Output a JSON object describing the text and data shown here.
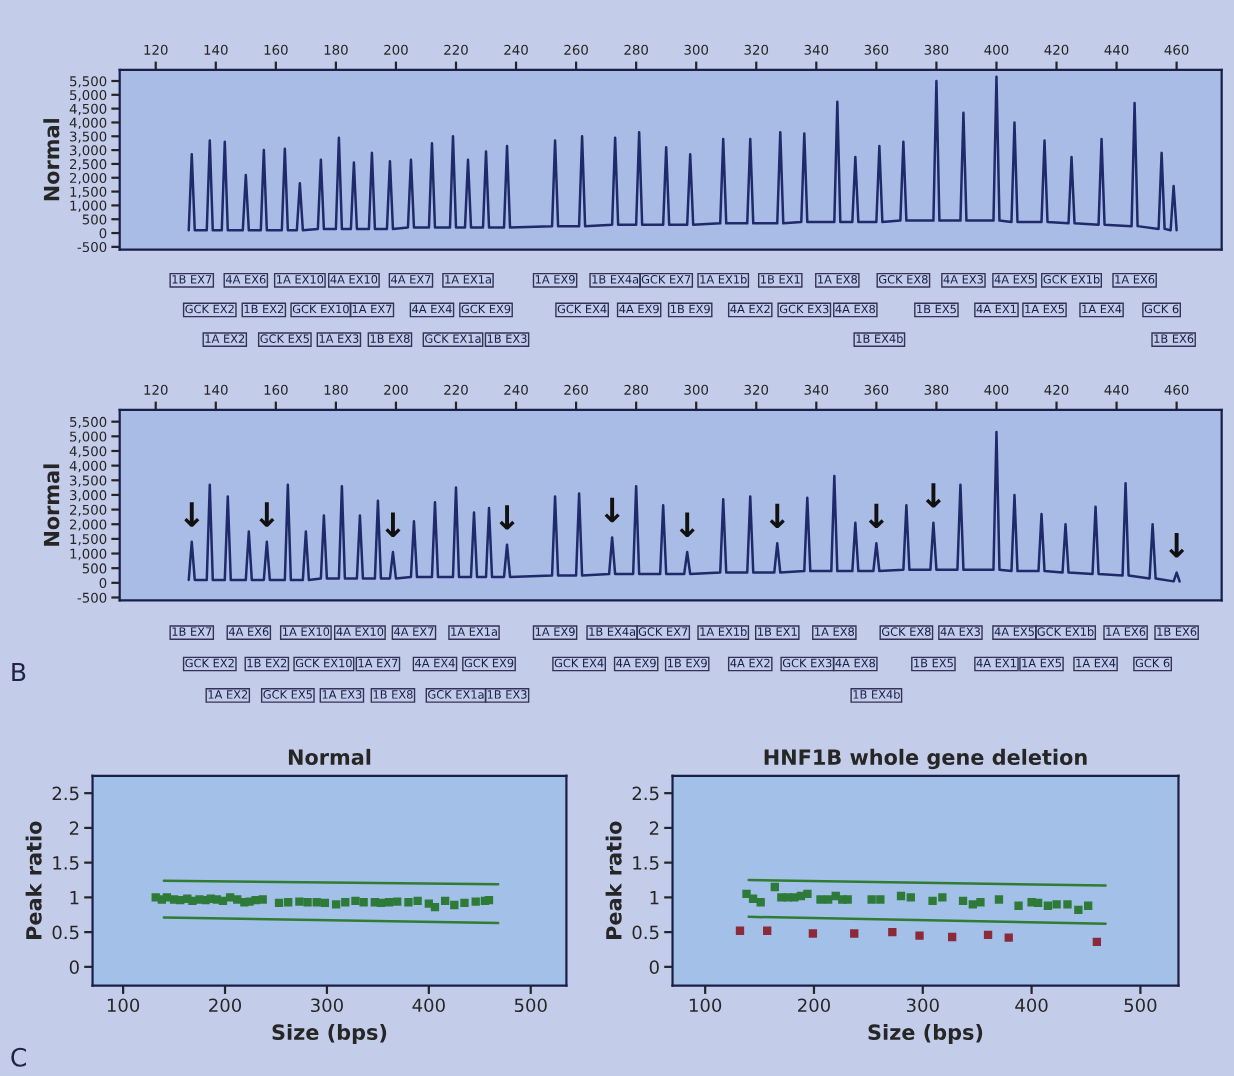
{
  "chart_data": [
    {
      "type": "line",
      "ylabel": "Normal",
      "line_style": "solid",
      "xlim": [
        108,
        475
      ],
      "xticks": [
        120,
        140,
        160,
        180,
        200,
        220,
        240,
        260,
        280,
        300,
        320,
        340,
        360,
        380,
        400,
        420,
        440,
        460
      ],
      "ylim": [
        -600,
        5900
      ],
      "yticks": [
        {
          "value": -500,
          "label": "-500"
        },
        0,
        500,
        {
          "value": 1000,
          "label": "1,000"
        },
        {
          "value": 1500,
          "label": "1,500"
        },
        {
          "value": 2000,
          "label": "2,000"
        },
        {
          "value": 2500,
          "label": "2,500"
        },
        {
          "value": 3000,
          "label": "3,000"
        },
        {
          "value": 3500,
          "label": "3,500"
        },
        {
          "value": 4000,
          "label": "4,000"
        },
        {
          "value": 4500,
          "label": "4,500"
        },
        {
          "value": 5000,
          "label": "5,000"
        },
        {
          "value": 5500,
          "label": "5,500"
        }
      ],
      "series": [
        {
          "color": "#1f2a6b",
          "x": [
            131,
            132,
            133,
            137,
            138,
            139,
            142,
            143,
            144,
            149,
            150,
            151,
            155,
            156,
            157,
            162,
            163,
            164,
            167,
            168,
            169,
            174,
            175,
            176,
            180,
            181,
            182,
            185,
            186,
            187,
            191,
            192,
            193,
            197,
            198,
            199,
            204,
            205,
            206,
            211,
            212,
            213,
            218,
            219,
            220,
            223,
            224,
            225,
            229,
            230,
            231,
            236,
            237,
            238,
            252,
            253,
            254,
            261,
            262,
            263,
            272,
            273,
            274,
            280,
            281,
            282,
            289,
            290,
            291,
            297,
            298,
            299,
            308,
            309,
            310,
            317,
            318,
            319,
            327,
            328,
            329,
            335,
            336,
            337,
            346,
            347,
            348,
            352,
            353,
            354,
            360,
            361,
            362,
            368,
            369,
            370,
            379,
            380,
            381,
            388,
            389,
            390,
            399,
            400,
            401,
            405,
            406,
            407,
            415,
            416,
            417,
            424,
            425,
            426,
            434,
            435,
            436,
            445,
            446,
            447,
            454,
            455,
            456,
            458,
            459,
            460
          ],
          "values": [
            100,
            2850,
            100,
            100,
            3350,
            100,
            100,
            3300,
            100,
            100,
            2100,
            100,
            100,
            3000,
            100,
            100,
            3050,
            100,
            100,
            1800,
            100,
            150,
            2650,
            150,
            150,
            3450,
            150,
            150,
            2550,
            150,
            150,
            2900,
            150,
            150,
            2600,
            150,
            200,
            2650,
            200,
            200,
            3250,
            200,
            200,
            3500,
            200,
            200,
            2650,
            200,
            200,
            2950,
            200,
            200,
            3150,
            200,
            250,
            3350,
            250,
            250,
            3500,
            250,
            300,
            3450,
            300,
            300,
            3650,
            300,
            300,
            3100,
            300,
            300,
            2850,
            300,
            350,
            3400,
            350,
            350,
            3400,
            350,
            350,
            3650,
            350,
            400,
            3600,
            400,
            400,
            4750,
            400,
            400,
            2750,
            400,
            400,
            3150,
            400,
            450,
            3300,
            450,
            450,
            5500,
            450,
            450,
            4350,
            450,
            450,
            5650,
            450,
            400,
            4000,
            400,
            400,
            3350,
            400,
            350,
            2750,
            350,
            300,
            3400,
            300,
            250,
            4700,
            250,
            150,
            2900,
            150,
            100,
            1700,
            100
          ]
        }
      ],
      "annotations": [
        "1B EX7",
        "GCK EX2",
        "1A EX2",
        "4A EX6",
        "1B EX2",
        "GCK EX5",
        "1A EX10",
        "GCK EX10",
        "1A EX3",
        "4A EX10",
        "1A EX7",
        "1B EX8",
        "4A EX7",
        "4A EX4",
        "GCK EX1a",
        "1A EX1a",
        "GCK EX9",
        "1B EX3",
        "1A EX9",
        "GCK EX4",
        "1B EX4a",
        "4A EX9",
        "GCK EX7",
        "1B EX9",
        "1A EX1b",
        "4A EX2",
        "1B EX1",
        "GCK EX3",
        "1A EX8",
        "4A EX8",
        "1B EX4b",
        "GCK EX8",
        "1B EX5",
        "4A EX3",
        "4A EX1",
        "4A EX5",
        "1A EX5",
        "GCK EX1b",
        "1A EX4",
        "1A EX6",
        "GCK 6",
        "1B EX6"
      ]
    },
    {
      "type": "line",
      "ylabel": "Normal",
      "line_style": "solid",
      "xlim": [
        108,
        475
      ],
      "xticks": [
        120,
        140,
        160,
        180,
        200,
        220,
        240,
        260,
        280,
        300,
        320,
        340,
        360,
        380,
        400,
        420,
        440,
        460
      ],
      "ylim": [
        -600,
        5900
      ],
      "yticks": [
        {
          "value": -500,
          "label": "-500"
        },
        0,
        500,
        {
          "value": 1000,
          "label": "1,000"
        },
        {
          "value": 1500,
          "label": "1,500"
        },
        {
          "value": 2000,
          "label": "2,000"
        },
        {
          "value": 2500,
          "label": "2,500"
        },
        {
          "value": 3000,
          "label": "3,000"
        },
        {
          "value": 3500,
          "label": "3,500"
        },
        {
          "value": 4000,
          "label": "4,000"
        },
        {
          "value": 4500,
          "label": "4,500"
        },
        {
          "value": 5000,
          "label": "5,000"
        },
        {
          "value": 5500,
          "label": "5,500"
        }
      ],
      "series": [
        {
          "color": "#1f2a6b",
          "x": [
            131,
            132,
            133,
            137,
            138,
            139,
            143,
            144,
            145,
            150,
            151,
            152,
            156,
            157,
            158,
            163,
            164,
            165,
            169,
            170,
            171,
            175,
            176,
            177,
            181,
            182,
            183,
            187,
            188,
            189,
            193,
            194,
            195,
            198,
            199,
            200,
            205,
            206,
            207,
            212,
            213,
            214,
            219,
            220,
            221,
            225,
            226,
            227,
            230,
            231,
            232,
            236,
            237,
            238,
            252,
            253,
            254,
            260,
            261,
            262,
            271,
            272,
            273,
            279,
            280,
            281,
            288,
            289,
            290,
            296,
            297,
            298,
            308,
            309,
            310,
            317,
            318,
            319,
            326,
            327,
            328,
            336,
            337,
            338,
            345,
            346,
            347,
            352,
            353,
            354,
            359,
            360,
            361,
            369,
            370,
            371,
            378,
            379,
            380,
            387,
            388,
            389,
            399,
            400,
            401,
            405,
            406,
            407,
            414,
            415,
            416,
            422,
            423,
            424,
            432,
            433,
            434,
            442,
            443,
            444,
            451,
            452,
            453,
            459,
            460,
            461
          ],
          "values": [
            100,
            1400,
            100,
            100,
            3350,
            100,
            100,
            2950,
            100,
            100,
            1750,
            100,
            100,
            1400,
            100,
            100,
            3350,
            100,
            100,
            1750,
            100,
            150,
            2300,
            150,
            150,
            3300,
            150,
            150,
            2300,
            150,
            150,
            2800,
            150,
            150,
            1050,
            150,
            200,
            2100,
            200,
            200,
            2750,
            200,
            200,
            3250,
            200,
            200,
            2400,
            200,
            200,
            2550,
            200,
            200,
            1300,
            200,
            250,
            2950,
            250,
            250,
            3050,
            250,
            300,
            1550,
            300,
            300,
            3300,
            300,
            300,
            2650,
            300,
            300,
            1050,
            300,
            350,
            2850,
            350,
            350,
            2950,
            350,
            350,
            1350,
            350,
            400,
            2900,
            400,
            400,
            3650,
            400,
            400,
            2050,
            400,
            400,
            1350,
            400,
            450,
            2650,
            450,
            450,
            2050,
            450,
            450,
            3350,
            450,
            450,
            5150,
            450,
            400,
            3000,
            400,
            400,
            2350,
            400,
            350,
            2000,
            350,
            300,
            2600,
            300,
            250,
            3400,
            250,
            150,
            2000,
            150,
            50,
            350,
            50
          ]
        }
      ],
      "annotations": [
        {
          "text": "↓",
          "x": 132,
          "y": 1400
        },
        {
          "text": "↓",
          "x": 157,
          "y": 1400
        },
        {
          "text": "↓",
          "x": 199,
          "y": 1050
        },
        {
          "text": "↓",
          "x": 237,
          "y": 1300
        },
        {
          "text": "↓",
          "x": 272,
          "y": 1550
        },
        {
          "text": "↓",
          "x": 297,
          "y": 1050
        },
        {
          "text": "↓",
          "x": 327,
          "y": 1350
        },
        {
          "text": "↓",
          "x": 360,
          "y": 1350
        },
        {
          "text": "↓",
          "x": 379,
          "y": 2050
        },
        {
          "text": "↓",
          "x": 460,
          "y": 350
        },
        "1B EX7",
        "GCK EX2",
        "1A EX2",
        "4A EX6",
        "1B EX2",
        "GCK EX5",
        "1A EX10",
        "GCK EX10",
        "1A EX3",
        "4A EX10",
        "1A EX7",
        "1B EX8",
        "4A EX7",
        "4A EX4",
        "GCK EX1a",
        "1A EX1a",
        "GCK EX9",
        "1B EX3",
        "1A EX9",
        "GCK EX4",
        "1B EX4a",
        "4A EX9",
        "GCK EX7",
        "1B EX9",
        "1A EX1b",
        "4A EX2",
        "1B EX1",
        "GCK EX3",
        "1A EX8",
        "4A EX8",
        "1B EX4b",
        "GCK EX8",
        "1B EX5",
        "4A EX3",
        "4A EX1",
        "4A EX5",
        "1A EX5",
        "GCK EX1b",
        "1A EX4",
        "1A EX6",
        "GCK 6",
        "1B EX6",
        "B"
      ]
    },
    {
      "type": "scatter",
      "title": "Normal",
      "xlabel": "Size (bps)",
      "ylabel": "Peak ratio",
      "marker": "square",
      "line_style": "solid",
      "xlim": [
        70,
        535
      ],
      "xticks": [
        100,
        200,
        300,
        400,
        500
      ],
      "ylim": [
        -0.27,
        2.75
      ],
      "yticks": [
        0,
        0.5,
        1,
        1.5,
        2,
        2.5
      ],
      "series": [
        {
          "type": "line",
          "marker": "none",
          "color": "#2f7d32",
          "x": [
            140,
            468
          ],
          "values": [
            1.24,
            1.19
          ]
        },
        {
          "type": "line",
          "marker": "none",
          "color": "#2f7d32",
          "x": [
            140,
            468
          ],
          "values": [
            0.71,
            0.63
          ]
        },
        {
          "color": "#2e7a38",
          "x": [
            132,
            138,
            143,
            150,
            156,
            163,
            168,
            175,
            181,
            186,
            192,
            198,
            205,
            212,
            219,
            224,
            230,
            237,
            253,
            262,
            273,
            281,
            290,
            298,
            309,
            318,
            328,
            336,
            347,
            353,
            361,
            369,
            380,
            389,
            400,
            406,
            416,
            425,
            435,
            446,
            455,
            459
          ],
          "values": [
            1.0,
            0.97,
            1.0,
            0.97,
            0.96,
            0.98,
            0.95,
            0.97,
            0.96,
            0.98,
            0.97,
            0.95,
            1.0,
            0.97,
            0.93,
            0.94,
            0.96,
            0.97,
            0.92,
            0.93,
            0.94,
            0.93,
            0.93,
            0.92,
            0.9,
            0.93,
            0.95,
            0.93,
            0.93,
            0.92,
            0.93,
            0.94,
            0.93,
            0.95,
            0.91,
            0.86,
            0.95,
            0.89,
            0.92,
            0.94,
            0.95,
            0.96
          ]
        }
      ],
      "annotations": [
        "C"
      ]
    },
    {
      "type": "scatter",
      "title": "HNF1B whole gene deletion",
      "xlabel": "Size (bps)",
      "ylabel": "Peak ratio",
      "marker": "square",
      "line_style": "solid",
      "xlim": [
        70,
        535
      ],
      "xticks": [
        100,
        200,
        300,
        400,
        500
      ],
      "ylim": [
        -0.27,
        2.75
      ],
      "yticks": [
        0,
        0.5,
        1,
        1.5,
        2,
        2.5
      ],
      "series": [
        {
          "type": "line",
          "marker": "none",
          "color": "#2f7d32",
          "x": [
            140,
            468
          ],
          "values": [
            1.25,
            1.17
          ]
        },
        {
          "type": "line",
          "marker": "none",
          "color": "#2f7d32",
          "x": [
            140,
            468
          ],
          "values": [
            0.72,
            0.62
          ]
        },
        {
          "color": "#2e7a38",
          "x": [
            138,
            144,
            151,
            164,
            170,
            176,
            182,
            188,
            194,
            206,
            213,
            220,
            226,
            231,
            253,
            261,
            280,
            289,
            309,
            318,
            337,
            346,
            353,
            370,
            388,
            400,
            406,
            415,
            423,
            433,
            443,
            452
          ],
          "values": [
            1.05,
            0.98,
            0.93,
            1.15,
            1.0,
            1.0,
            1.0,
            1.02,
            1.05,
            0.97,
            0.97,
            1.02,
            0.97,
            0.97,
            0.97,
            0.97,
            1.02,
            1.0,
            0.95,
            1.0,
            0.95,
            0.9,
            0.93,
            0.97,
            0.88,
            0.93,
            0.92,
            0.88,
            0.9,
            0.9,
            0.82,
            0.88
          ]
        },
        {
          "color": "#8b2b3a",
          "x": [
            132,
            157,
            199,
            237,
            272,
            297,
            327,
            360,
            379,
            460
          ],
          "values": [
            0.52,
            0.52,
            0.48,
            0.48,
            0.5,
            0.45,
            0.43,
            0.46,
            0.42,
            0.36
          ]
        }
      ]
    }
  ]
}
